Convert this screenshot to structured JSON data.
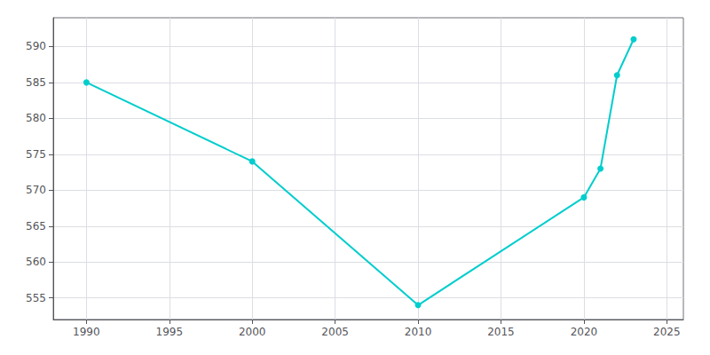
{
  "chart_data": {
    "type": "line",
    "x": [
      1990,
      2000,
      2010,
      2020,
      2021,
      2022,
      2023
    ],
    "values": [
      585,
      574,
      554,
      569,
      573,
      586,
      591
    ],
    "color": "#00CDCD",
    "marker": "circle",
    "xlim": [
      1988,
      2026
    ],
    "ylim": [
      552,
      594
    ],
    "xticks": [
      1990,
      1995,
      2000,
      2005,
      2010,
      2015,
      2020,
      2025
    ],
    "yticks": [
      555,
      560,
      565,
      570,
      575,
      580,
      585,
      590
    ],
    "grid": true
  }
}
